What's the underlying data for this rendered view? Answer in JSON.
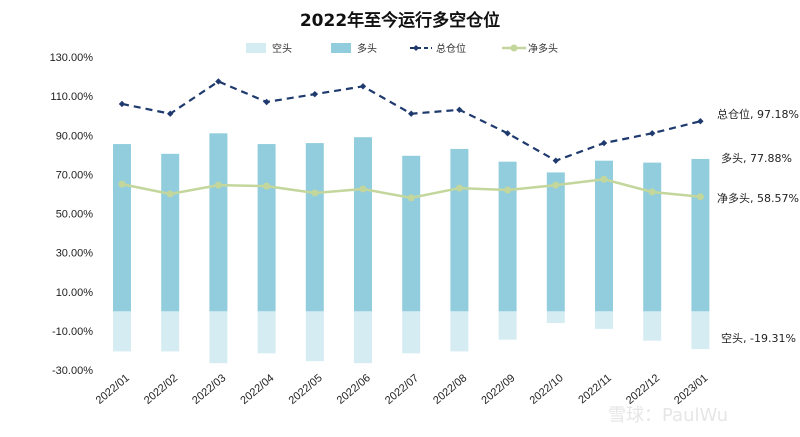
{
  "chart_data": {
    "type": "bar",
    "title": "2022年至今运行多空仓位",
    "categories": [
      "2022/01",
      "2022/02",
      "2022/03",
      "2022/04",
      "2022/05",
      "2022/06",
      "2022/07",
      "2022/08",
      "2022/09",
      "2022/10",
      "2022/11",
      "2022/12",
      "2023/01"
    ],
    "y_ticks": [
      "130.00%",
      "110.00%",
      "90.00%",
      "70.00%",
      "50.00%",
      "30.00%",
      "10.00%",
      "-10.00%",
      "-30.00%"
    ],
    "ylim": [
      -30,
      130
    ],
    "grid": false,
    "legend_position": "top",
    "series": [
      {
        "name": "空头",
        "kind": "bar",
        "color": "#d6ecf3",
        "values": [
          -20.5,
          -20.5,
          -26.5,
          -21.5,
          -25.5,
          -26.5,
          -21.5,
          -20.5,
          -14.5,
          -6.0,
          -9.0,
          -15.0,
          -19.31
        ]
      },
      {
        "name": "多头",
        "kind": "bar",
        "color": "#92cddd",
        "values": [
          85.5,
          80.5,
          91.0,
          85.5,
          86.0,
          89.0,
          79.5,
          83.0,
          76.5,
          71.0,
          77.0,
          76.0,
          77.88
        ]
      },
      {
        "name": "总仓位",
        "kind": "dashed-line",
        "color": "#1f3a6e",
        "values": [
          106.0,
          101.0,
          117.5,
          107.0,
          111.0,
          115.0,
          101.0,
          103.0,
          91.0,
          77.0,
          86.0,
          91.0,
          97.18
        ]
      },
      {
        "name": "净多头",
        "kind": "line",
        "color": "#c3d69b",
        "values": [
          65.0,
          60.0,
          64.5,
          64.0,
          60.5,
          62.5,
          58.0,
          63.0,
          62.0,
          64.5,
          67.5,
          61.0,
          58.57
        ]
      }
    ],
    "end_labels": {
      "total": "总仓位, 97.18%",
      "long": "多头, 77.88%",
      "net": "净多头, 58.57%",
      "short": "空头, -19.31%"
    }
  },
  "watermark": "雪球：PaulWu"
}
